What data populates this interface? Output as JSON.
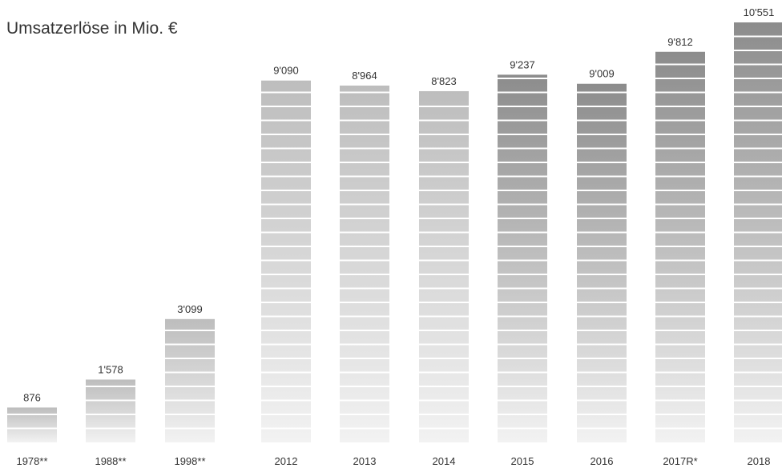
{
  "chart_data": {
    "type": "bar",
    "title": "Umsatzerlöse in Mio. €",
    "categories": [
      "1978**",
      "1988**",
      "1998**",
      "2012",
      "2013",
      "2014",
      "2015",
      "2016",
      "2017R*",
      "2018"
    ],
    "values": [
      876,
      1578,
      3099,
      9090,
      8964,
      8823,
      9237,
      9009,
      9812,
      10551
    ],
    "value_labels": [
      "876",
      "1'578",
      "3'099",
      "9'090",
      "8'964",
      "8'823",
      "9'237",
      "9'009",
      "9'812",
      "10'551"
    ],
    "colors": [
      "#bdbdbd",
      "#bdbdbd",
      "#bdbdbd",
      "#bdbdbd",
      "#bdbdbd",
      "#bdbdbd",
      "#8c8c8c",
      "#8c8c8c",
      "#8c8c8c",
      "#8c8c8c"
    ]
  }
}
